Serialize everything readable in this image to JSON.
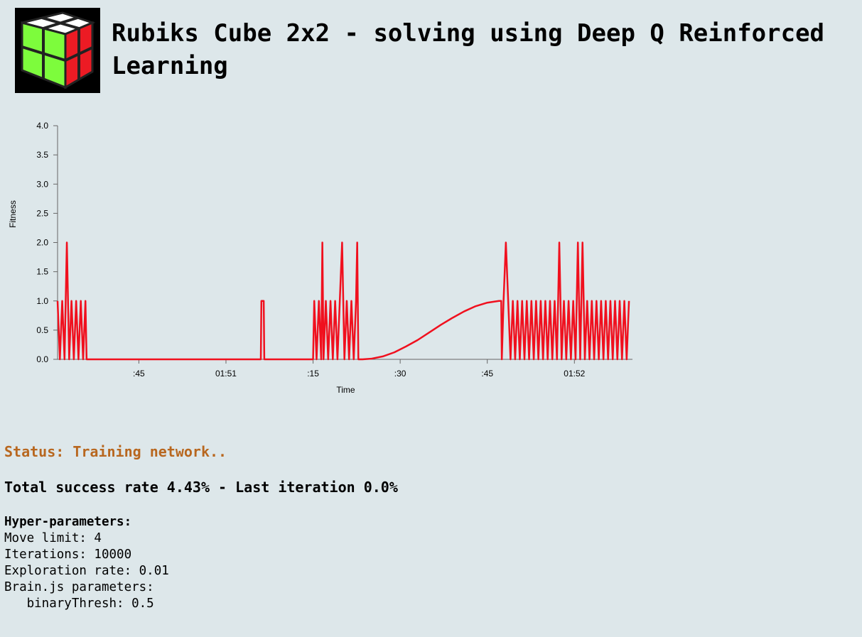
{
  "header": {
    "title": "Rubiks Cube 2x2 - solving using Deep Q Reinforced Learning"
  },
  "chart_data": {
    "type": "line",
    "x_label": "Time",
    "y_label": "Fitness",
    "color": "#f0101e",
    "x": [
      31.0,
      31.4,
      31.8,
      32.2,
      32.6,
      33.0,
      33.4,
      33.8,
      34.2,
      34.6,
      35.0,
      35.4,
      35.8,
      36.0,
      66.0,
      66.1,
      66.5,
      66.6,
      75.0,
      75.2,
      75.6,
      76.0,
      76.4,
      76.6,
      76.8,
      77.2,
      77.6,
      78.0,
      78.4,
      78.8,
      79.2,
      79.6,
      80.0,
      80.4,
      80.8,
      81.2,
      81.6,
      82.0,
      82.4,
      82.6,
      82.8,
      83.5,
      85,
      87,
      89,
      91,
      93,
      95,
      97,
      99,
      101,
      103,
      105,
      107,
      107.4,
      107.5,
      107.8,
      108.2,
      108.6,
      109.0,
      109.4,
      109.8,
      110.2,
      110.6,
      111.0,
      111.4,
      111.8,
      112.2,
      112.6,
      113.0,
      113.4,
      113.8,
      114.2,
      114.6,
      115.0,
      115.4,
      115.8,
      116.2,
      116.6,
      117.0,
      117.4,
      117.8,
      118.2,
      118.6,
      119.0,
      119.4,
      119.8,
      120.2,
      120.6,
      121.0,
      121.4,
      121.8,
      122.2,
      122.6,
      123.0,
      123.4,
      123.8,
      124.2,
      124.6,
      125.0,
      125.4,
      125.8,
      126.2,
      126.6,
      127.0,
      127.4,
      127.8,
      128.2,
      128.6,
      129.0,
      129.4
    ],
    "values": [
      1,
      0,
      1,
      0,
      2,
      0,
      1,
      0,
      1,
      0,
      1,
      0,
      1,
      0,
      0,
      1,
      1,
      0,
      0,
      1,
      0,
      1,
      0,
      2,
      0,
      1,
      0,
      1,
      0,
      1,
      0,
      1,
      2,
      0,
      1,
      0,
      1,
      0,
      1,
      2,
      0,
      0,
      0.01,
      0.05,
      0.12,
      0.22,
      0.33,
      0.46,
      0.59,
      0.71,
      0.82,
      0.91,
      0.97,
      1,
      1,
      0,
      1,
      2,
      1,
      0,
      1,
      0,
      1,
      0,
      1,
      0,
      1,
      0,
      1,
      0,
      1,
      0,
      1,
      0,
      1,
      0,
      1,
      0,
      1,
      0,
      2,
      0,
      1,
      0,
      1,
      0,
      1,
      0,
      2,
      0,
      2,
      0,
      1,
      0,
      1,
      0,
      1,
      0,
      1,
      0,
      1,
      0,
      1,
      0,
      1,
      0,
      1,
      0,
      1,
      0,
      1
    ],
    "xlim": [
      31,
      130
    ],
    "xticks": [
      {
        "value": 45,
        "label": ":45"
      },
      {
        "value": 60,
        "label": "01:51"
      },
      {
        "value": 75,
        "label": ":15"
      },
      {
        "value": 90,
        "label": ":30"
      },
      {
        "value": 105,
        "label": ":45"
      },
      {
        "value": 120,
        "label": "01:52"
      }
    ],
    "ylim": [
      0,
      4
    ],
    "yticks": [
      {
        "value": 0,
        "label": "0.0"
      },
      {
        "value": 0.5,
        "label": "0.5"
      },
      {
        "value": 1,
        "label": "1.0"
      },
      {
        "value": 1.5,
        "label": "1.5"
      },
      {
        "value": 2,
        "label": "2.0"
      },
      {
        "value": 2.5,
        "label": "2.5"
      },
      {
        "value": 3,
        "label": "3.0"
      },
      {
        "value": 3.5,
        "label": "3.5"
      },
      {
        "value": 4,
        "label": "4.0"
      }
    ]
  },
  "status": "Status: Training network..",
  "success": "Total success rate 4.43% - Last iteration 0.0%",
  "hyperparameters": {
    "heading": "Hyper-parameters:",
    "lines": [
      "Move limit: 4",
      "Iterations: 10000",
      "Exploration rate: 0.01",
      "Brain.js parameters:",
      "   binaryThresh: 0.5"
    ]
  }
}
